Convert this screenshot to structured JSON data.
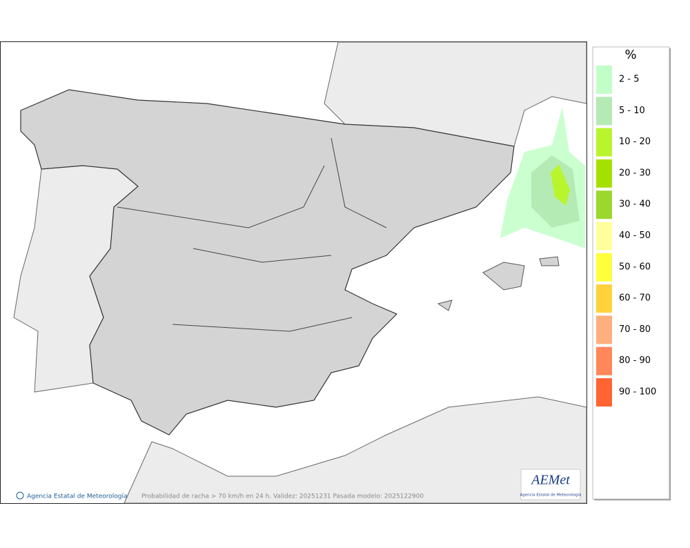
{
  "map": {
    "footer_text": "Probabilidad de racha > 70 km/h en 24 h. Validez: 20251231 Pasada modelo: 2025122900",
    "copyright": "Agencia Estatal de Meteorología",
    "logo": {
      "title": "AEMet",
      "subtitle": "Agencia Estatal de Meteorología"
    }
  },
  "legend": {
    "title": "%",
    "items": [
      {
        "label": "2 - 5",
        "color": "#c2ffc8"
      },
      {
        "label": "5 - 10",
        "color": "#b4ebb4"
      },
      {
        "label": "10 - 20",
        "color": "#b9f52d"
      },
      {
        "label": "20 - 30",
        "color": "#a5e100"
      },
      {
        "label": "30 - 40",
        "color": "#9bd72d"
      },
      {
        "label": "40 - 50",
        "color": "#ffff9b"
      },
      {
        "label": "50 - 60",
        "color": "#ffff3c"
      },
      {
        "label": "60 - 70",
        "color": "#ffd23c"
      },
      {
        "label": "70 - 80",
        "color": "#ffaf7d"
      },
      {
        "label": "80 - 90",
        "color": "#ff875a"
      },
      {
        "label": "90 - 100",
        "color": "#ff6432"
      }
    ]
  }
}
